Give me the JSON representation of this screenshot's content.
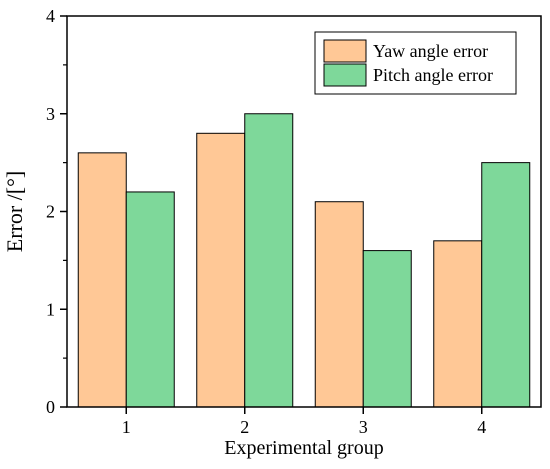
{
  "chart_data": {
    "type": "bar",
    "categories": [
      "1",
      "2",
      "3",
      "4"
    ],
    "series": [
      {
        "name": "Yaw angle error",
        "values": [
          2.6,
          2.8,
          2.1,
          1.7
        ],
        "color": "#FFC896"
      },
      {
        "name": "Pitch angle error",
        "values": [
          2.2,
          3.0,
          1.6,
          2.5
        ],
        "color": "#7ED89A"
      }
    ],
    "xlabel": "Experimental group",
    "ylabel": "Error /[°]",
    "ylim": [
      0,
      4
    ],
    "yticks": [
      "0",
      "1",
      "2",
      "3",
      "4"
    ],
    "grid": false,
    "legend_position": "top-right"
  }
}
